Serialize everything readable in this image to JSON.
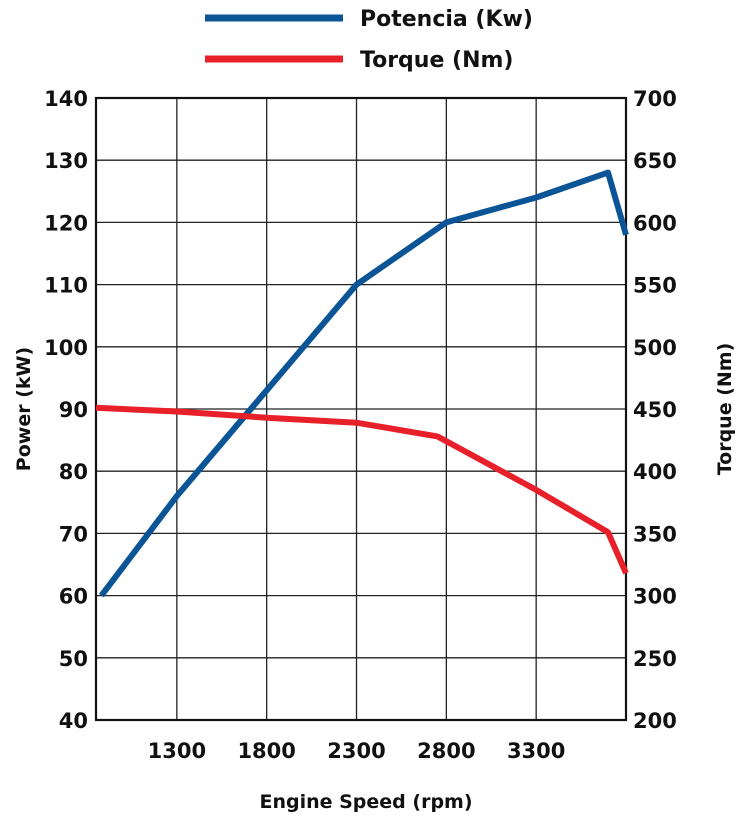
{
  "chart_data": {
    "type": "line",
    "xlabel": "Engine Speed (rpm)",
    "ylabel_left": "Power (kW)",
    "ylabel_right": "Torque (Nm)",
    "xlim": [
      850,
      3800
    ],
    "ylim_left": [
      40,
      140
    ],
    "ylim_right": [
      200,
      700
    ],
    "x_ticks": [
      "1300",
      "1800",
      "2300",
      "2800",
      "3300"
    ],
    "y_ticks_left": [
      "40",
      "50",
      "60",
      "70",
      "80",
      "90",
      "100",
      "110",
      "120",
      "130",
      "140"
    ],
    "y_ticks_right": [
      "200",
      "250",
      "300",
      "350",
      "400",
      "450",
      "500",
      "550",
      "600",
      "650",
      "700"
    ],
    "grid": true,
    "legend_position": "top",
    "series": [
      {
        "name": "Potencia (Kw)",
        "axis": "left",
        "color": "#0b5597",
        "x": [
          880,
          1300,
          1800,
          2300,
          2800,
          3300,
          3700,
          3800
        ],
        "y": [
          60,
          76,
          93,
          110,
          120,
          124,
          128,
          118
        ]
      },
      {
        "name": "Torque (Nm)",
        "axis": "right",
        "color": "#e8202a",
        "x": [
          850,
          1300,
          1800,
          2300,
          2750,
          3300,
          3700,
          3800
        ],
        "y": [
          451,
          448,
          443,
          439,
          428,
          385,
          351,
          318
        ]
      }
    ]
  }
}
